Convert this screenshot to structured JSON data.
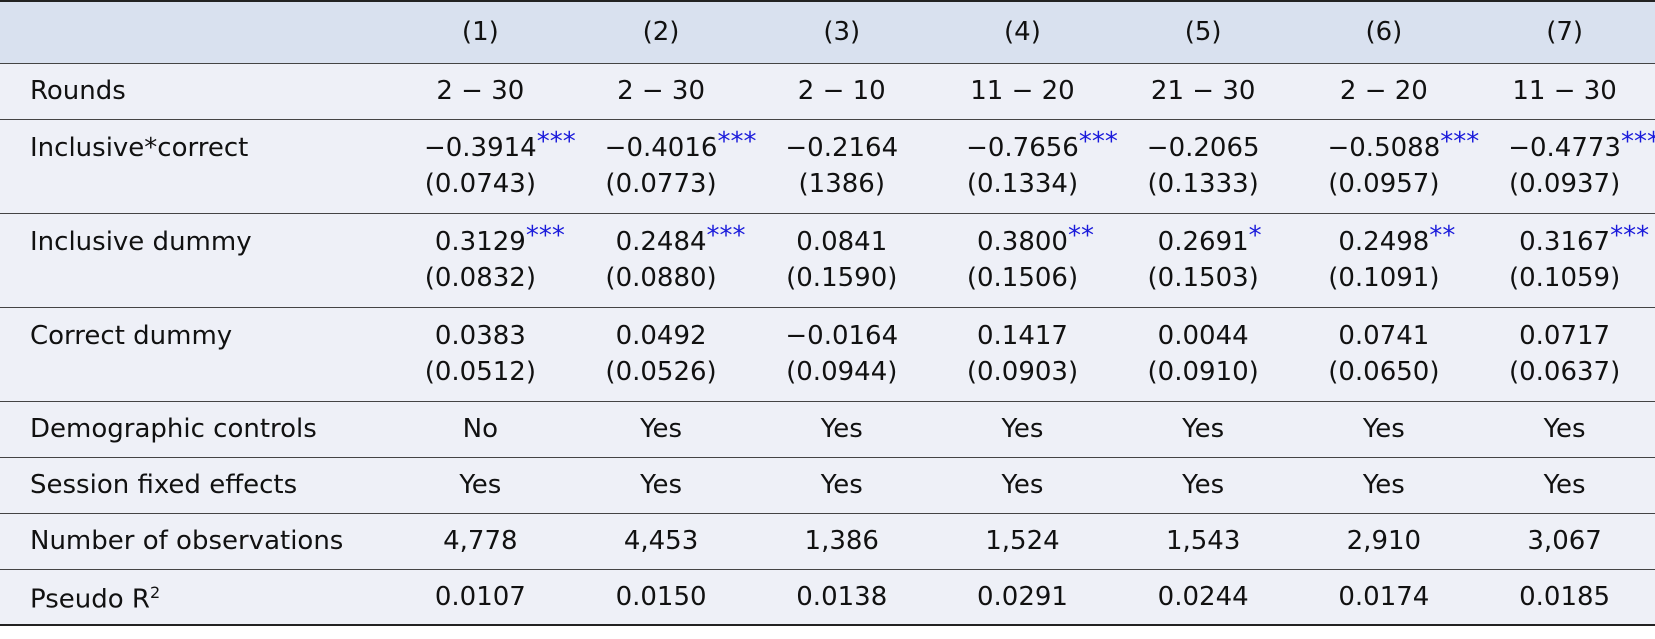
{
  "table": {
    "columns": [
      "(1)",
      "(2)",
      "(3)",
      "(4)",
      "(5)",
      "(6)",
      "(7)"
    ],
    "rows": [
      {
        "label": "Rounds",
        "cells": [
          "2 − 30",
          "2 − 30",
          "2 − 10",
          "11 − 20",
          "21 − 30",
          "2 − 20",
          "11 − 30"
        ]
      },
      {
        "label": "Inclusive*correct",
        "cells": [
          {
            "coef": "−0.3914",
            "stars": "***",
            "se": "(0.0743)"
          },
          {
            "coef": "−0.4016",
            "stars": "***",
            "se": "(0.0773)"
          },
          {
            "coef": "−0.2164",
            "se": "(1386)"
          },
          {
            "coef": "−0.7656",
            "stars": "***",
            "se": "(0.1334)"
          },
          {
            "coef": "−0.2065",
            "se": "(0.1333)"
          },
          {
            "coef": "−0.5088",
            "stars": "***",
            "se": "(0.0957)"
          },
          {
            "coef": "−0.4773",
            "stars": "***",
            "se": "(0.0937)"
          }
        ]
      },
      {
        "label": "Inclusive dummy",
        "cells": [
          {
            "coef": "0.3129",
            "stars": "***",
            "se": "(0.0832)"
          },
          {
            "coef": "0.2484",
            "stars": "***",
            "se": "(0.0880)"
          },
          {
            "coef": "0.0841",
            "se": "(0.1590)"
          },
          {
            "coef": "0.3800",
            "stars": "**",
            "se": "(0.1506)"
          },
          {
            "coef": "0.2691",
            "stars": "*",
            "se": "(0.1503)"
          },
          {
            "coef": "0.2498",
            "stars": "**",
            "se": "(0.1091)"
          },
          {
            "coef": "0.3167",
            "stars": "***",
            "se": "(0.1059)"
          }
        ]
      },
      {
        "label": "Correct dummy",
        "cells": [
          {
            "coef": "0.0383",
            "se": "(0.0512)"
          },
          {
            "coef": "0.0492",
            "se": "(0.0526)"
          },
          {
            "coef": "−0.0164",
            "se": "(0.0944)"
          },
          {
            "coef": "0.1417",
            "se": "(0.0903)"
          },
          {
            "coef": "0.0044",
            "se": "(0.0910)"
          },
          {
            "coef": "0.0741",
            "se": "(0.0650)"
          },
          {
            "coef": "0.0717",
            "se": "(0.0637)"
          }
        ]
      },
      {
        "label": "Demographic controls",
        "cells": [
          "No",
          "Yes",
          "Yes",
          "Yes",
          "Yes",
          "Yes",
          "Yes"
        ]
      },
      {
        "label": "Session fixed effects",
        "cells": [
          "Yes",
          "Yes",
          "Yes",
          "Yes",
          "Yes",
          "Yes",
          "Yes"
        ]
      },
      {
        "label": "Number of observations",
        "cells": [
          "4,778",
          "4,453",
          "1,386",
          "1,524",
          "1,543",
          "2,910",
          "3,067"
        ]
      },
      {
        "label": "Pseudo R",
        "label_sup": "2",
        "cells": [
          "0.0107",
          "0.0150",
          "0.0138",
          "0.0291",
          "0.0244",
          "0.0174",
          "0.0185"
        ]
      }
    ]
  }
}
